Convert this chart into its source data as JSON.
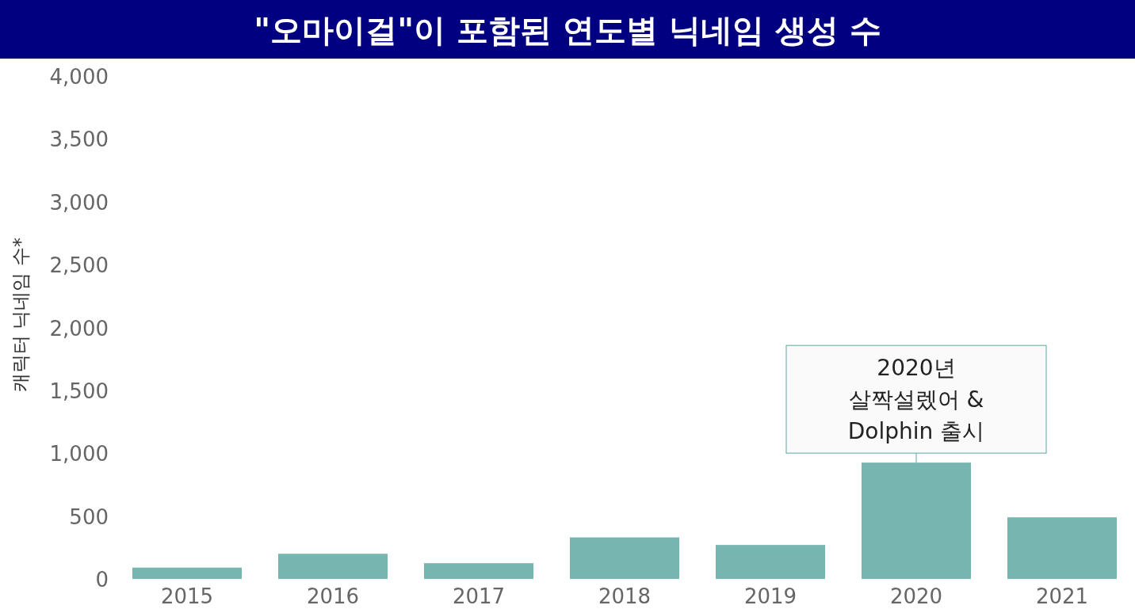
{
  "chart_data": {
    "type": "bar",
    "title": "\"오마이걸\"이 포함된 연도별 닉네임 생성 수",
    "ylabel": "캐릭터 닉네임 수*",
    "categories": [
      "2015",
      "2016",
      "2017",
      "2018",
      "2019",
      "2020",
      "2021"
    ],
    "values": [
      90,
      200,
      125,
      330,
      270,
      925,
      490
    ],
    "color": "#77b6b0",
    "ylim": [
      0,
      4000
    ],
    "yticks": [
      0,
      500,
      {
        "value": 1000,
        "label": "1,000"
      },
      {
        "value": 1500,
        "label": "1,500"
      },
      {
        "value": 2000,
        "label": "2,000"
      },
      {
        "value": 2500,
        "label": "2,500"
      },
      {
        "value": 3000,
        "label": "3,000"
      },
      {
        "value": 3500,
        "label": "3,500"
      },
      {
        "value": 4000,
        "label": "4,000"
      }
    ],
    "annotations": [
      {
        "text": "2020년 살짝설렜어 & Dolphin 출시",
        "x": "2020",
        "y": 925
      }
    ],
    "grid": false
  }
}
